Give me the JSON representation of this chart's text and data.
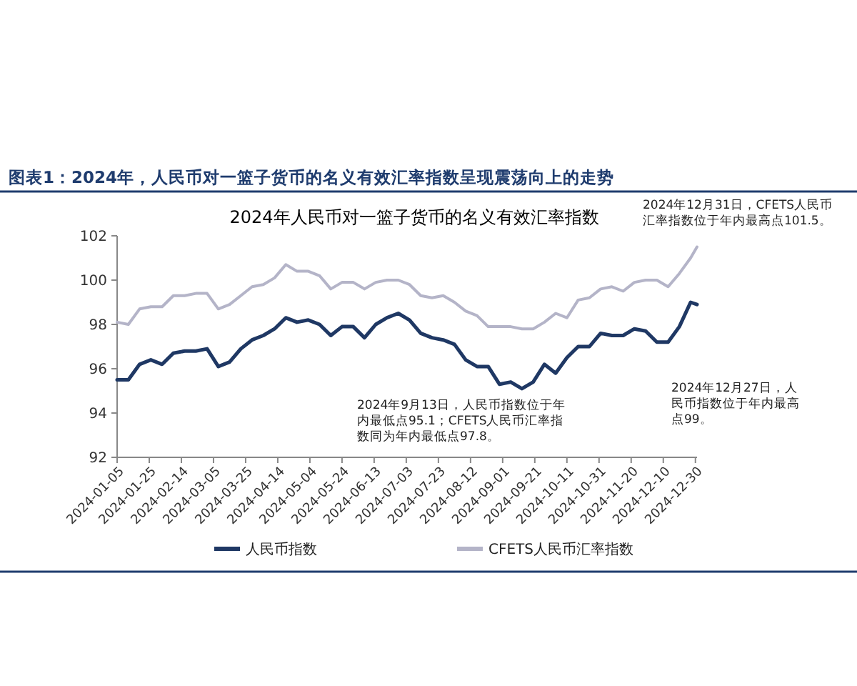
{
  "chart_data": {
    "type": "line",
    "title": "图表1：2024年，人民币对一篮子货币的名义有效汇率指数呈现震荡向上的走势",
    "subtitle": "2024年人民币对一篮子货币的名义有效汇率指数",
    "x": [
      "2024-01-05",
      "2024-01-12",
      "2024-01-19",
      "2024-01-26",
      "2024-02-02",
      "2024-02-09",
      "2024-02-16",
      "2024-02-23",
      "2024-03-01",
      "2024-03-08",
      "2024-03-15",
      "2024-03-22",
      "2024-03-29",
      "2024-04-05",
      "2024-04-12",
      "2024-04-19",
      "2024-04-26",
      "2024-05-03",
      "2024-05-10",
      "2024-05-17",
      "2024-05-24",
      "2024-05-31",
      "2024-06-07",
      "2024-06-14",
      "2024-06-21",
      "2024-06-28",
      "2024-07-05",
      "2024-07-12",
      "2024-07-19",
      "2024-07-26",
      "2024-08-02",
      "2024-08-09",
      "2024-08-16",
      "2024-08-23",
      "2024-08-30",
      "2024-09-06",
      "2024-09-13",
      "2024-09-20",
      "2024-09-27",
      "2024-10-04",
      "2024-10-11",
      "2024-10-18",
      "2024-10-25",
      "2024-11-01",
      "2024-11-08",
      "2024-11-15",
      "2024-11-22",
      "2024-11-29",
      "2024-12-06",
      "2024-12-13",
      "2024-12-20",
      "2024-12-27",
      "2024-12-31"
    ],
    "series": [
      {
        "name": "人民币指数",
        "color": "#1f3864",
        "values": [
          95.5,
          95.5,
          96.2,
          96.4,
          96.2,
          96.7,
          96.8,
          96.8,
          96.9,
          96.1,
          96.3,
          96.9,
          97.3,
          97.5,
          97.8,
          98.3,
          98.1,
          98.2,
          98.0,
          97.5,
          97.9,
          97.9,
          97.4,
          98.0,
          98.3,
          98.5,
          98.2,
          97.6,
          97.4,
          97.3,
          97.1,
          96.4,
          96.1,
          96.1,
          95.3,
          95.4,
          95.1,
          95.4,
          96.2,
          95.8,
          96.5,
          97.0,
          97.0,
          97.6,
          97.5,
          97.5,
          97.8,
          97.7,
          97.2,
          97.2,
          97.9,
          99.0,
          98.9
        ]
      },
      {
        "name": "CFETS人民币汇率指数",
        "color": "#b4b4c8",
        "values": [
          98.1,
          98.0,
          98.7,
          98.8,
          98.8,
          99.3,
          99.3,
          99.4,
          99.4,
          98.7,
          98.9,
          99.3,
          99.7,
          99.8,
          100.1,
          100.7,
          100.4,
          100.4,
          100.2,
          99.6,
          99.9,
          99.9,
          99.6,
          99.9,
          100.0,
          100.0,
          99.8,
          99.3,
          99.2,
          99.3,
          99.0,
          98.6,
          98.4,
          97.9,
          97.9,
          97.9,
          97.8,
          97.8,
          98.1,
          98.5,
          98.3,
          99.1,
          99.2,
          99.6,
          99.7,
          99.5,
          99.9,
          100.0,
          100.0,
          99.7,
          100.3,
          101.0,
          101.5
        ]
      }
    ],
    "xlim": [
      "2024-01-05",
      "2024-12-31"
    ],
    "xticks": [
      "2024-01-05",
      "2024-01-25",
      "2024-02-14",
      "2024-03-05",
      "2024-03-25",
      "2024-04-14",
      "2024-05-04",
      "2024-05-24",
      "2024-06-13",
      "2024-07-03",
      "2024-07-23",
      "2024-08-12",
      "2024-09-01",
      "2024-09-21",
      "2024-10-11",
      "2024-10-31",
      "2024-11-20",
      "2024-12-10",
      "2024-12-30"
    ],
    "ylim": [
      92,
      102
    ],
    "yticks": [
      92,
      94,
      96,
      98,
      100,
      102
    ],
    "grid": false,
    "legend": "bottom",
    "marker": "none",
    "line_style": "solid",
    "annotations": [
      "2024年9月13日，人民币指数位于年内最低点95.1；CFETS人民币汇率指数同为年内最低点97.8。",
      "2024年12月31日，CFETS人民币汇率指数位于年内最高点101.5。",
      "2024年12月27日，人民币指数位于年内最高点99。"
    ]
  }
}
